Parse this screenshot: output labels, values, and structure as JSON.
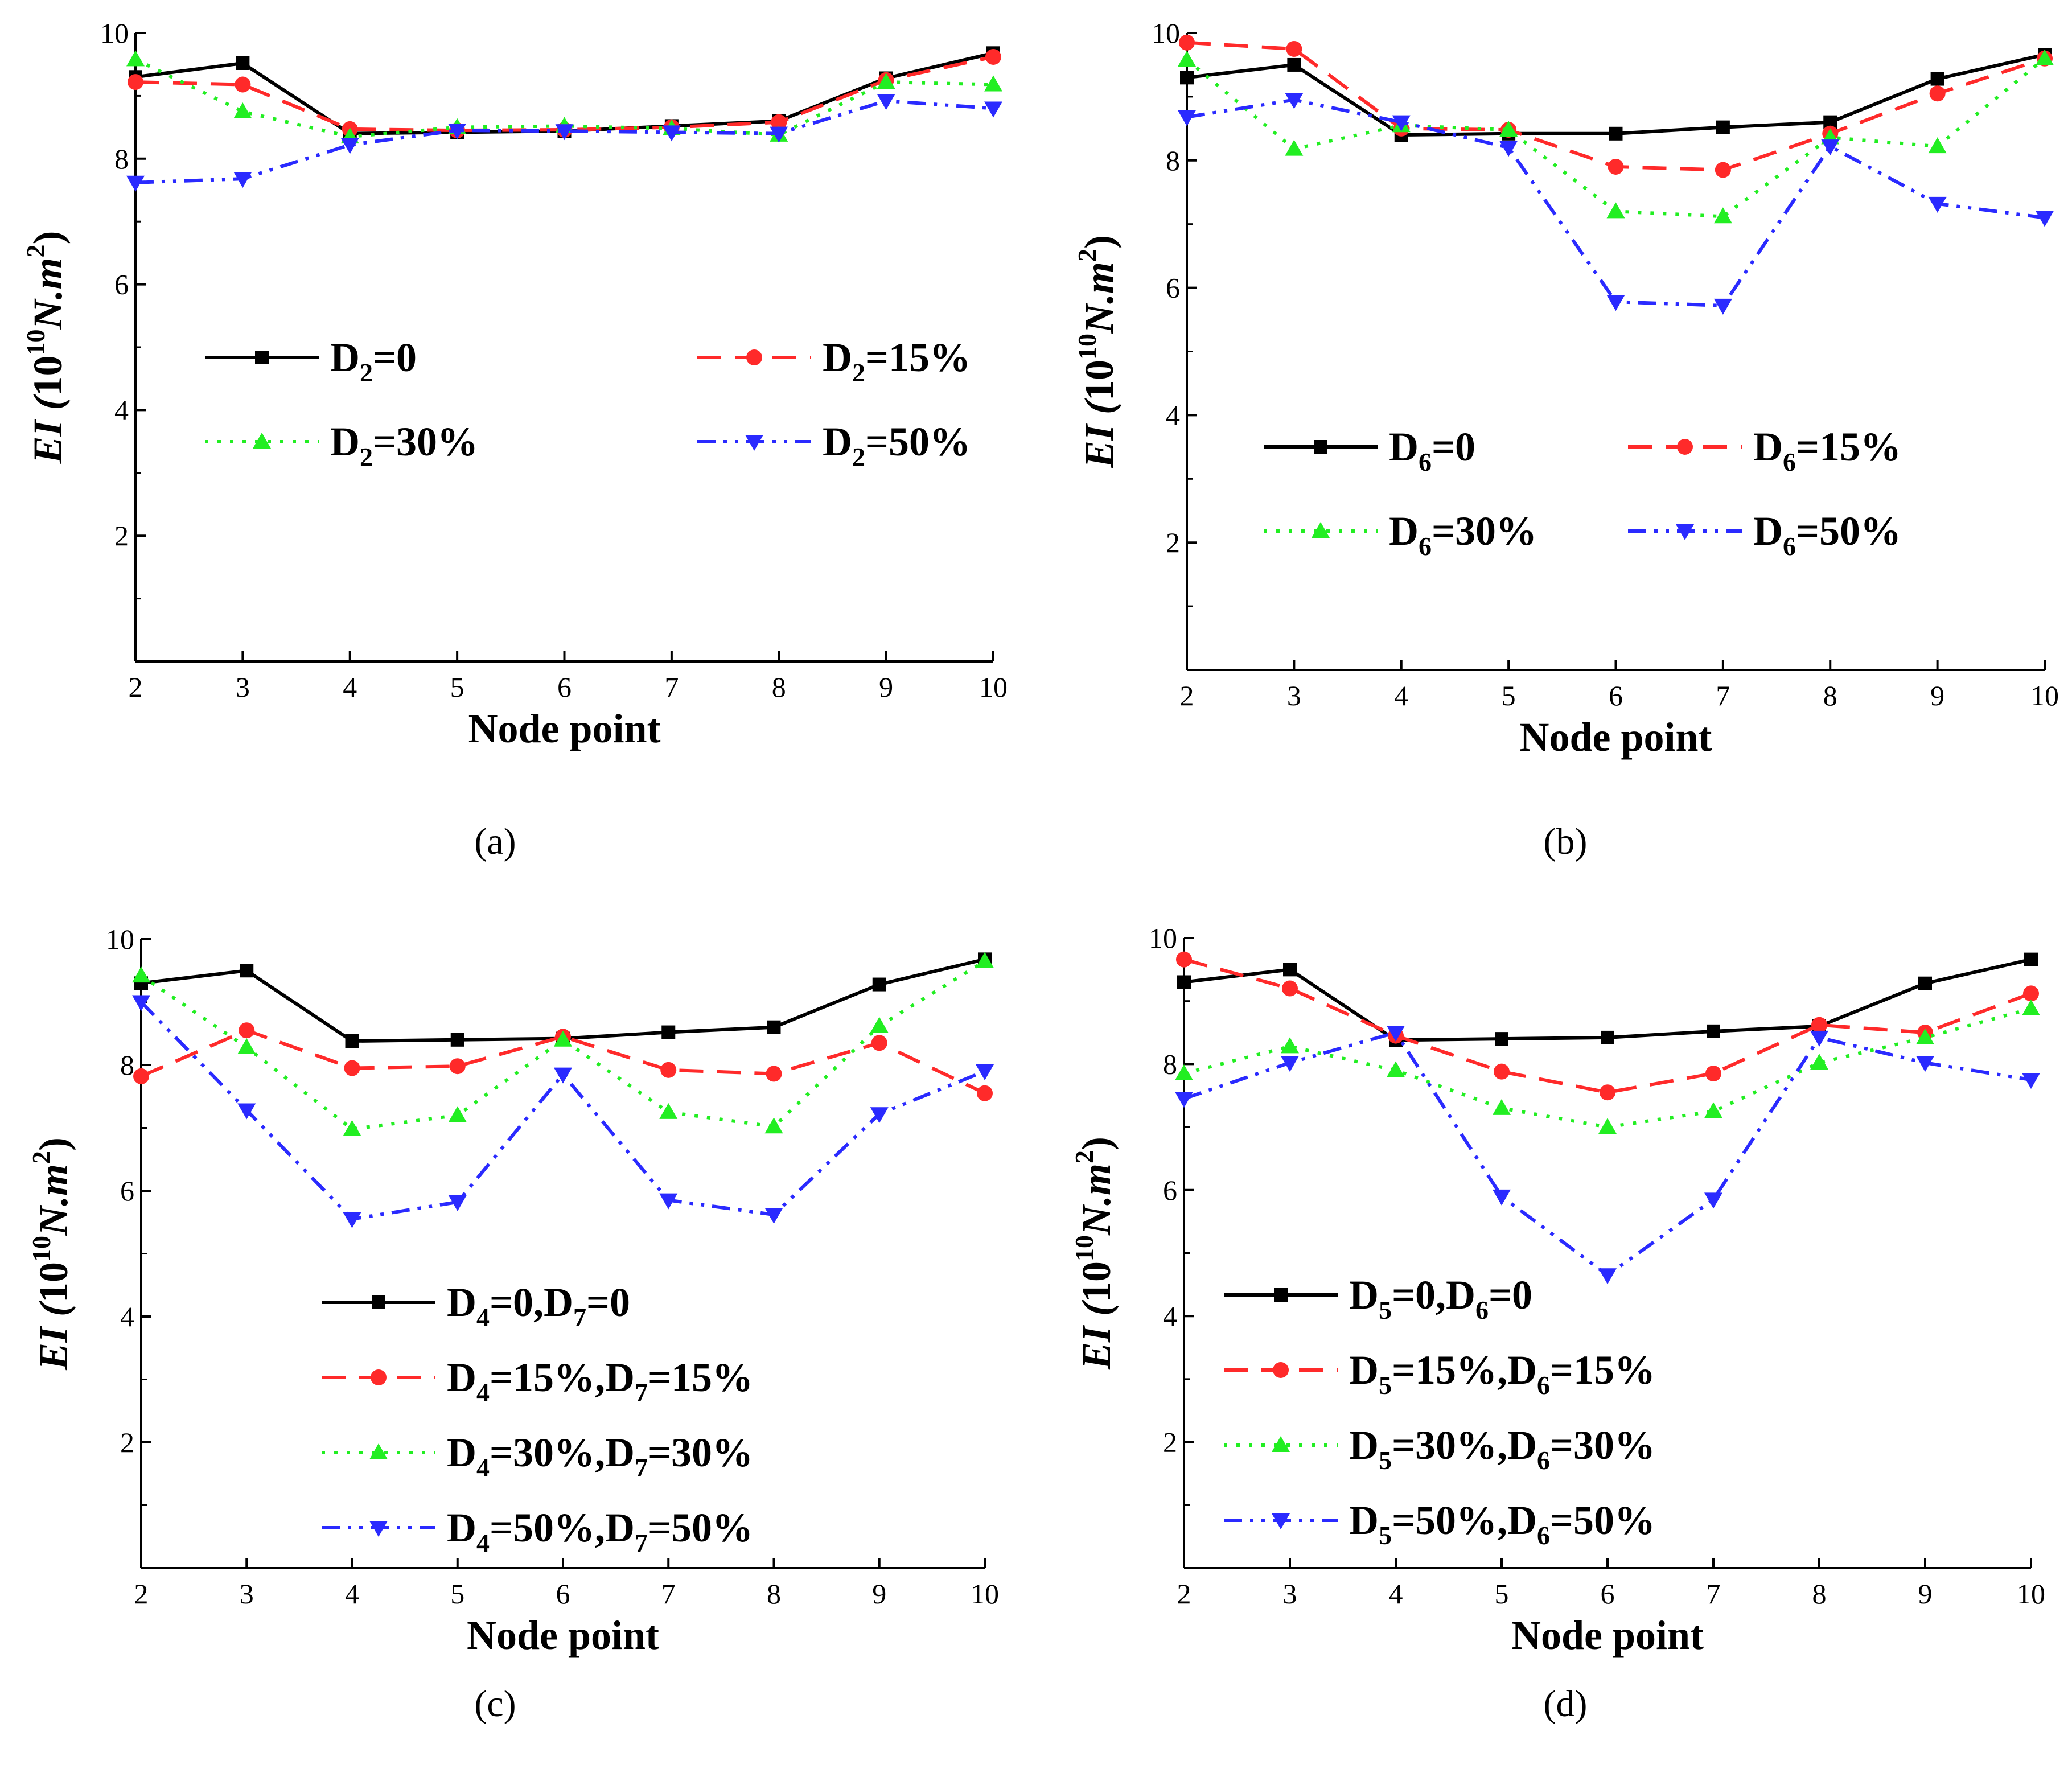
{
  "chart_data": [
    {
      "type": "line",
      "caption": "(a)",
      "categories": [
        "2",
        "3",
        "4",
        "5",
        "6",
        "7",
        "8",
        "9",
        "10"
      ],
      "x": [
        2,
        3,
        4,
        5,
        6,
        7,
        8,
        9,
        10
      ],
      "xlabel": "Node point",
      "ylabel": {
        "main": "EI (10",
        "exp1": "10",
        "mid": "N.m",
        "exp2": "2",
        "close": ")"
      },
      "ylim": [
        0,
        10
      ],
      "xlim": [
        2,
        10
      ],
      "yticks": [
        "2",
        "4",
        "6",
        "8",
        "10"
      ],
      "legend_layout": "grid-2",
      "series": [
        {
          "name": "D2=0",
          "label": {
            "sym": "D",
            "sub": "2",
            "rest": "=0"
          },
          "color": "#000000",
          "dash": "",
          "marker": "square",
          "values": [
            9.3,
            9.52,
            8.4,
            8.42,
            8.44,
            8.52,
            8.6,
            9.28,
            9.68
          ]
        },
        {
          "name": "D2=15%",
          "label": {
            "sym": "D",
            "sub": "2",
            "rest": "=15%"
          },
          "color": "#ff2a2a",
          "dash": "42,24",
          "marker": "circle",
          "values": [
            9.22,
            9.18,
            8.47,
            8.45,
            8.46,
            8.5,
            8.58,
            9.25,
            9.62
          ]
        },
        {
          "name": "D2=30%",
          "label": {
            "sym": "D",
            "sub": "2",
            "rest": "=30%"
          },
          "color": "#22ee22",
          "dash": "6,16",
          "marker": "triangle-up",
          "values": [
            9.58,
            8.75,
            8.35,
            8.5,
            8.52,
            8.48,
            8.38,
            9.22,
            9.18
          ]
        },
        {
          "name": "D2=50%",
          "label": {
            "sym": "D",
            "sub": "2",
            "rest": "=50%"
          },
          "color": "#2a2aff",
          "dash": "32,14,6,14,6,14",
          "marker": "triangle-down",
          "values": [
            7.62,
            7.68,
            8.22,
            8.45,
            8.44,
            8.42,
            8.4,
            8.92,
            8.8
          ]
        }
      ]
    },
    {
      "type": "line",
      "caption": "(b)",
      "categories": [
        "2",
        "3",
        "4",
        "5",
        "6",
        "7",
        "8",
        "9",
        "10"
      ],
      "x": [
        2,
        3,
        4,
        5,
        6,
        7,
        8,
        9,
        10
      ],
      "xlabel": "Node point",
      "ylabel": {
        "main": "EI (10",
        "exp1": "10",
        "mid": "N.m",
        "exp2": "2",
        "close": ")"
      },
      "ylim": [
        0,
        10
      ],
      "xlim": [
        2,
        10
      ],
      "yticks": [
        "2",
        "4",
        "6",
        "8",
        "10"
      ],
      "legend_layout": "grid-2",
      "series": [
        {
          "name": "D6=0",
          "label": {
            "sym": "D",
            "sub": "6",
            "rest": "=0"
          },
          "color": "#000000",
          "dash": "",
          "marker": "square",
          "values": [
            9.3,
            9.5,
            8.4,
            8.42,
            8.42,
            8.52,
            8.6,
            9.28,
            9.66
          ]
        },
        {
          "name": "D6=15%",
          "label": {
            "sym": "D",
            "sub": "6",
            "rest": "=15%"
          },
          "color": "#ff2a2a",
          "dash": "42,24",
          "marker": "circle",
          "values": [
            9.85,
            9.75,
            8.5,
            8.48,
            7.9,
            7.85,
            8.42,
            9.05,
            9.6
          ]
        },
        {
          "name": "D6=30%",
          "label": {
            "sym": "D",
            "sub": "6",
            "rest": "=30%"
          },
          "color": "#22ee22",
          "dash": "6,16",
          "marker": "triangle-up",
          "values": [
            9.58,
            8.18,
            8.55,
            8.48,
            7.2,
            7.12,
            8.36,
            8.22,
            9.6
          ]
        },
        {
          "name": "D6=50%",
          "label": {
            "sym": "D",
            "sub": "6",
            "rest": "=50%"
          },
          "color": "#2a2aff",
          "dash": "32,14,6,14,6,14",
          "marker": "triangle-down",
          "values": [
            8.68,
            8.95,
            8.6,
            8.2,
            5.78,
            5.72,
            8.22,
            7.32,
            7.1
          ]
        }
      ]
    },
    {
      "type": "line",
      "caption": "(c)",
      "categories": [
        "2",
        "3",
        "4",
        "5",
        "6",
        "7",
        "8",
        "9",
        "10"
      ],
      "x": [
        2,
        3,
        4,
        5,
        6,
        7,
        8,
        9,
        10
      ],
      "xlabel": "Node point",
      "ylabel": {
        "main": "EI (10",
        "exp1": "10",
        "mid": "N.m",
        "exp2": "2",
        "close": ")"
      },
      "ylim": [
        0,
        10
      ],
      "xlim": [
        2,
        10
      ],
      "yticks": [
        "2",
        "4",
        "6",
        "8",
        "10"
      ],
      "legend_layout": "column",
      "series": [
        {
          "name": "D4=0,D7=0",
          "label": {
            "sym": "D",
            "sub": "4",
            "rest": "=0,",
            "sym2": "D",
            "sub2": "7",
            "rest2": "=0"
          },
          "color": "#000000",
          "dash": "",
          "marker": "square",
          "values": [
            9.3,
            9.5,
            8.38,
            8.4,
            8.42,
            8.52,
            8.6,
            9.28,
            9.68
          ]
        },
        {
          "name": "D4=15%,D7=15%",
          "label": {
            "sym": "D",
            "sub": "4",
            "rest": "=15%,",
            "sym2": "D",
            "sub2": "7",
            "rest2": "=15%"
          },
          "color": "#ff2a2a",
          "dash": "42,24",
          "marker": "circle",
          "values": [
            7.82,
            8.55,
            7.95,
            7.98,
            8.45,
            7.92,
            7.86,
            8.35,
            7.55
          ]
        },
        {
          "name": "D4=30%,D7=30%",
          "label": {
            "sym": "D",
            "sub": "4",
            "rest": "=30%,",
            "sym2": "D",
            "sub2": "7",
            "rest2": "=30%"
          },
          "color": "#22ee22",
          "dash": "6,16",
          "marker": "triangle-up",
          "values": [
            9.42,
            8.28,
            6.98,
            7.2,
            8.4,
            7.25,
            7.02,
            8.62,
            9.65
          ]
        },
        {
          "name": "D4=50%,D7=50%",
          "label": {
            "sym": "D",
            "sub": "4",
            "rest": "=50%,",
            "sym2": "D",
            "sub2": "7",
            "rest2": "=50%"
          },
          "color": "#2a2aff",
          "dash": "32,14,6,14,6,14",
          "marker": "triangle-down",
          "values": [
            9.0,
            7.28,
            5.55,
            5.82,
            7.85,
            5.85,
            5.62,
            7.22,
            7.9
          ]
        }
      ]
    },
    {
      "type": "line",
      "caption": "(d)",
      "categories": [
        "2",
        "3",
        "4",
        "5",
        "6",
        "7",
        "8",
        "9",
        "10"
      ],
      "x": [
        2,
        3,
        4,
        5,
        6,
        7,
        8,
        9,
        10
      ],
      "xlabel": "Node point",
      "ylabel": {
        "main": "EI (10",
        "exp1": "10",
        "mid": "N.m",
        "exp2": "2",
        "close": ")"
      },
      "ylim": [
        0,
        10
      ],
      "xlim": [
        2,
        10
      ],
      "yticks": [
        "2",
        "4",
        "6",
        "8",
        "10"
      ],
      "legend_layout": "column",
      "series": [
        {
          "name": "D5=0,D6=0",
          "label": {
            "sym": "D",
            "sub": "5",
            "rest": "=0,",
            "sym2": "D",
            "sub2": "6",
            "rest2": "=0"
          },
          "color": "#000000",
          "dash": "",
          "marker": "square",
          "values": [
            9.3,
            9.5,
            8.38,
            8.4,
            8.42,
            8.52,
            8.6,
            9.28,
            9.66
          ]
        },
        {
          "name": "D5=15%,D6=15%",
          "label": {
            "sym": "D",
            "sub": "5",
            "rest": "=15%,",
            "sym2": "D",
            "sub2": "6",
            "rest2": "=15%"
          },
          "color": "#ff2a2a",
          "dash": "42,24",
          "marker": "circle",
          "values": [
            9.66,
            9.2,
            8.45,
            7.88,
            7.55,
            7.85,
            8.62,
            8.5,
            9.12
          ]
        },
        {
          "name": "D5=30%,D6=30%",
          "label": {
            "sym": "D",
            "sub": "5",
            "rest": "=30%,",
            "sym2": "D",
            "sub2": "6",
            "rest2": "=30%"
          },
          "color": "#22ee22",
          "dash": "6,16",
          "marker": "triangle-up",
          "values": [
            7.85,
            8.28,
            7.9,
            7.3,
            7.0,
            7.25,
            8.02,
            8.42,
            8.88
          ]
        },
        {
          "name": "D5=50%,D6=50%",
          "label": {
            "sym": "D",
            "sub": "5",
            "rest": "=50%,",
            "sym2": "D",
            "sub2": "6",
            "rest2": "=50%"
          },
          "color": "#2a2aff",
          "dash": "32,14,6,14,6,14",
          "marker": "triangle-down",
          "values": [
            7.45,
            8.02,
            8.5,
            5.9,
            4.65,
            5.85,
            8.42,
            8.02,
            7.75
          ]
        }
      ]
    }
  ]
}
